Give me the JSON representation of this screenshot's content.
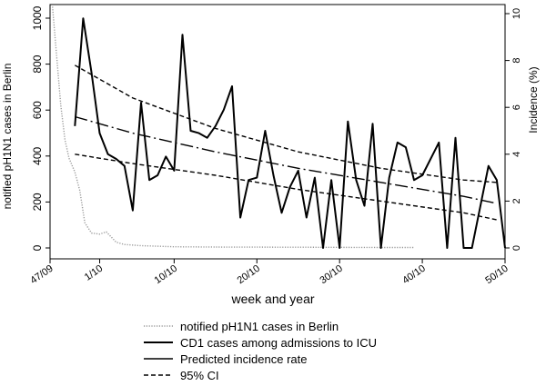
{
  "chart_data": {
    "type": "line",
    "xlabel": "week and year",
    "ylabel_left": "notified pH1N1 cases in Berlin",
    "ylabel_right": "Incidence (%)",
    "x_unit": "week index (0 = week 47/09)",
    "x_ticks": [
      {
        "x": 0,
        "label": "47/09"
      },
      {
        "x": 6,
        "label": "1/10"
      },
      {
        "x": 15,
        "label": "10/10"
      },
      {
        "x": 25,
        "label": "20/10"
      },
      {
        "x": 35,
        "label": "30/10"
      },
      {
        "x": 45,
        "label": "40/10"
      },
      {
        "x": 55,
        "label": "50/10"
      }
    ],
    "xlim": [
      0,
      55
    ],
    "ylim_left": [
      0,
      1050
    ],
    "yticks_left": [
      0,
      200,
      400,
      600,
      800,
      1000
    ],
    "ylim_right": [
      0,
      10.3
    ],
    "yticks_right": [
      0,
      2,
      4,
      6,
      8,
      10
    ],
    "legend_position": "bottom",
    "series": [
      {
        "name": "notified pH1N1 cases in Berlin",
        "axis": "left",
        "style": "dotted",
        "color": "#999999",
        "points": [
          [
            0.3,
            1050
          ],
          [
            1.3,
            620
          ],
          [
            1.8,
            470
          ],
          [
            2.3,
            390
          ],
          [
            3,
            330
          ],
          [
            3.6,
            250
          ],
          [
            4.2,
            110
          ],
          [
            5,
            65
          ],
          [
            6,
            60
          ],
          [
            6.8,
            70
          ],
          [
            8,
            25
          ],
          [
            9,
            15
          ],
          [
            11,
            10
          ],
          [
            15,
            5
          ],
          [
            20,
            4
          ],
          [
            30,
            3
          ],
          [
            40,
            2
          ],
          [
            44,
            2
          ]
        ]
      },
      {
        "name": "CD1 cases among admissions to ICU",
        "axis": "right",
        "style": "solid",
        "color": "#000000",
        "points": [
          [
            3,
            5.2
          ],
          [
            4,
            9.8
          ],
          [
            5,
            7.5
          ],
          [
            6,
            4.9
          ],
          [
            7,
            4.0
          ],
          [
            8,
            3.8
          ],
          [
            9,
            3.5
          ],
          [
            10,
            1.6
          ],
          [
            11,
            6.2
          ],
          [
            12,
            2.9
          ],
          [
            13,
            3.1
          ],
          [
            14,
            3.9
          ],
          [
            15,
            3.3
          ],
          [
            16,
            9.1
          ],
          [
            17,
            5.0
          ],
          [
            18,
            4.9
          ],
          [
            19,
            4.7
          ],
          [
            20,
            5.2
          ],
          [
            21,
            5.9
          ],
          [
            22,
            6.9
          ],
          [
            23,
            1.3
          ],
          [
            24,
            2.9
          ],
          [
            25,
            3.0
          ],
          [
            26,
            5.0
          ],
          [
            27,
            3.1
          ],
          [
            28,
            1.5
          ],
          [
            29,
            2.6
          ],
          [
            30,
            3.3
          ],
          [
            31,
            1.3
          ],
          [
            32,
            3.0
          ],
          [
            33,
            0.0
          ],
          [
            34,
            2.9
          ],
          [
            35,
            0.0
          ],
          [
            36,
            5.4
          ],
          [
            37,
            2.9
          ],
          [
            38,
            1.8
          ],
          [
            39,
            5.3
          ],
          [
            40,
            0.0
          ],
          [
            41,
            3.0
          ],
          [
            42,
            4.5
          ],
          [
            43,
            4.3
          ],
          [
            44,
            2.9
          ],
          [
            45,
            3.1
          ],
          [
            47,
            4.5
          ],
          [
            48,
            0.0
          ],
          [
            49,
            4.7
          ],
          [
            50,
            0.0
          ],
          [
            51,
            0.0
          ],
          [
            53,
            3.5
          ],
          [
            54,
            2.9
          ],
          [
            55,
            0.0
          ]
        ]
      },
      {
        "name": "Predicted incidence rate",
        "axis": "right",
        "style": "longdash",
        "color": "#000000",
        "points": [
          [
            3,
            5.6
          ],
          [
            10,
            4.9
          ],
          [
            20,
            4.1
          ],
          [
            30,
            3.4
          ],
          [
            40,
            2.8
          ],
          [
            50,
            2.2
          ],
          [
            54,
            1.9
          ]
        ]
      },
      {
        "name": "95% CI",
        "axis": "right",
        "style": "dashed",
        "color": "#000000",
        "points": [
          [
            3,
            7.8
          ],
          [
            10,
            6.4
          ],
          [
            20,
            5.1
          ],
          [
            30,
            4.1
          ],
          [
            40,
            3.4
          ],
          [
            50,
            2.9
          ],
          [
            54,
            2.8
          ]
        ]
      },
      {
        "name": "",
        "axis": "right",
        "style": "dashed",
        "color": "#000000",
        "points": [
          [
            3,
            4.0
          ],
          [
            10,
            3.6
          ],
          [
            20,
            3.1
          ],
          [
            30,
            2.5
          ],
          [
            40,
            2.0
          ],
          [
            50,
            1.5
          ],
          [
            54,
            1.2
          ]
        ]
      }
    ]
  }
}
